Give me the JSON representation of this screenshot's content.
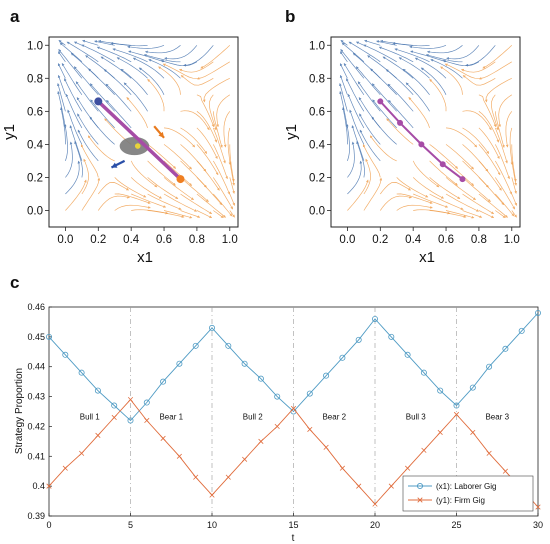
{
  "panel_labels": [
    "a",
    "b",
    "c"
  ],
  "chart_data": [
    {
      "type": "scatter",
      "subtype": "streamplot",
      "panel": "a",
      "xlabel": "x1",
      "ylabel": "y1",
      "xlim": [
        -0.1,
        1.05
      ],
      "ylim": [
        -0.1,
        1.05
      ],
      "xticks": [
        "0.0",
        "0.2",
        "0.4",
        "0.6",
        "0.8",
        "1.0"
      ],
      "yticks": [
        "0.0",
        "0.2",
        "0.4",
        "0.6",
        "0.8",
        "1.0"
      ],
      "colors": {
        "stream_left": "#4a76b0",
        "stream_right": "#f0a050",
        "path": "#a64ca6",
        "ellipse": "#7a7a7a",
        "arrow_orange": "#e87a1e",
        "arrow_blue": "#2a4fa8"
      },
      "path_line": [
        [
          0.2,
          0.66
        ],
        [
          0.7,
          0.19
        ]
      ],
      "start_point": {
        "x": 0.2,
        "y": 0.66,
        "color": "#3d4fa0"
      },
      "end_point": {
        "x": 0.7,
        "y": 0.19,
        "color": "#ef7f22"
      },
      "center_point": {
        "x": 0.44,
        "y": 0.39,
        "color": "#e8d23a"
      },
      "ellipse": {
        "cx": 0.42,
        "cy": 0.39,
        "rx": 0.09,
        "ry": 0.055
      },
      "arrows": [
        {
          "from": [
            0.54,
            0.51
          ],
          "to": [
            0.6,
            0.44
          ],
          "color": "#e87a1e"
        },
        {
          "from": [
            0.36,
            0.3
          ],
          "to": [
            0.28,
            0.26
          ],
          "color": "#2a4fa8"
        }
      ]
    },
    {
      "type": "scatter",
      "subtype": "streamplot",
      "panel": "b",
      "xlabel": "x1",
      "ylabel": "y1",
      "xlim": [
        -0.1,
        1.05
      ],
      "ylim": [
        -0.1,
        1.05
      ],
      "xticks": [
        "0.0",
        "0.2",
        "0.4",
        "0.6",
        "0.8",
        "1.0"
      ],
      "yticks": [
        "0.0",
        "0.2",
        "0.4",
        "0.6",
        "0.8",
        "1.0"
      ],
      "path_points": [
        [
          0.2,
          0.66
        ],
        [
          0.32,
          0.53
        ],
        [
          0.45,
          0.4
        ],
        [
          0.58,
          0.28
        ],
        [
          0.7,
          0.19
        ]
      ],
      "colors": {
        "path": "#a64ca6"
      }
    },
    {
      "type": "line",
      "panel": "c",
      "xlabel": "t",
      "ylabel": "Strategy Proportion",
      "xlim": [
        0,
        30
      ],
      "ylim": [
        0.39,
        0.46
      ],
      "xticks": [
        "0",
        "5",
        "10",
        "15",
        "20",
        "25",
        "30"
      ],
      "yticks": [
        "0.39",
        "0.4",
        "0.41",
        "0.42",
        "0.43",
        "0.44",
        "0.45",
        "0.46"
      ],
      "grid": false,
      "legend_position": "bottom-right",
      "phase_boundaries": [
        5,
        10,
        15,
        20,
        25
      ],
      "phases": [
        {
          "label": "Bull 1",
          "x": 2.5
        },
        {
          "label": "Bear 1",
          "x": 7.5
        },
        {
          "label": "Bull 2",
          "x": 12.5
        },
        {
          "label": "Bear 2",
          "x": 17.5
        },
        {
          "label": "Bull 3",
          "x": 22.5
        },
        {
          "label": "Bear 3",
          "x": 27.5
        }
      ],
      "x": [
        0,
        1,
        2,
        3,
        4,
        5,
        6,
        7,
        8,
        9,
        10,
        11,
        12,
        13,
        14,
        15,
        16,
        17,
        18,
        19,
        20,
        21,
        22,
        23,
        24,
        25,
        26,
        27,
        28,
        29,
        30
      ],
      "series": [
        {
          "name": "(x1): Laborer Gig",
          "color": "#4f9bc4",
          "marker": "circle",
          "values": [
            0.45,
            0.444,
            0.438,
            0.432,
            0.427,
            0.422,
            0.428,
            0.435,
            0.441,
            0.447,
            0.453,
            0.447,
            0.441,
            0.436,
            0.43,
            0.425,
            0.431,
            0.437,
            0.443,
            0.449,
            0.456,
            0.45,
            0.444,
            0.438,
            0.432,
            0.427,
            0.433,
            0.44,
            0.446,
            0.452,
            0.458
          ]
        },
        {
          "name": "(y1): Firm Gig",
          "color": "#e06c3c",
          "marker": "x",
          "values": [
            0.4,
            0.406,
            0.411,
            0.417,
            0.423,
            0.429,
            0.422,
            0.416,
            0.41,
            0.403,
            0.397,
            0.403,
            0.409,
            0.415,
            0.42,
            0.426,
            0.419,
            0.413,
            0.406,
            0.4,
            0.394,
            0.4,
            0.406,
            0.412,
            0.418,
            0.424,
            0.418,
            0.411,
            0.405,
            0.399,
            0.393
          ]
        }
      ]
    }
  ]
}
